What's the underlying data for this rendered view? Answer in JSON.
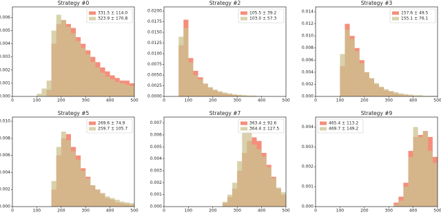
{
  "chart_data": [
    {
      "type": "histogram",
      "title": "Strategy #0",
      "legend": "upper right",
      "bins": [
        0,
        20,
        40,
        60,
        80,
        100,
        120,
        140,
        160,
        180,
        200,
        220,
        240,
        260,
        280,
        300,
        320,
        340,
        360,
        380,
        400,
        420,
        440,
        460,
        480,
        500
      ],
      "series": [
        {
          "name": "331.5 ± 114.0",
          "color": "#f0684f",
          "values": [
            0,
            0,
            0,
            0,
            0,
            0,
            0,
            0.0005,
            0.004,
            0.0055,
            0.0058,
            0.0055,
            0.0052,
            0.0045,
            0.004,
            0.0035,
            0.003,
            0.0026,
            0.0022,
            0.0019,
            0.0016,
            0.0014,
            0.0012,
            0.0012,
            0.001
          ]
        },
        {
          "name": "323.9 ± 170.8",
          "color": "#cbc28f",
          "values": [
            0,
            0,
            0,
            0,
            0,
            0.0002,
            0.0006,
            0.0012,
            0.005,
            0.0062,
            0.0058,
            0.0053,
            0.0048,
            0.0042,
            0.0037,
            0.0032,
            0.0026,
            0.0022,
            0.0018,
            0.0015,
            0.0013,
            0.0011,
            0.001,
            0.0009,
            0.0008
          ]
        }
      ],
      "xlim": [
        0,
        500
      ],
      "xticks": [
        0,
        100,
        200,
        300,
        400,
        500
      ],
      "ylim": [
        0,
        0.0068
      ],
      "yticks": [
        {
          "value": 0,
          "label": "0.000"
        },
        {
          "value": 0.001,
          "label": "0.001"
        },
        {
          "value": 0.002,
          "label": "0.002"
        },
        {
          "value": 0.003,
          "label": "0.003"
        },
        {
          "value": 0.004,
          "label": "0.004"
        },
        {
          "value": 0.005,
          "label": "0.005"
        },
        {
          "value": 0.006,
          "label": "0.006"
        }
      ]
    },
    {
      "type": "histogram",
      "title": "Strategy #2",
      "legend": "upper right",
      "bins": [
        0,
        20,
        40,
        60,
        80,
        100,
        120,
        140,
        160,
        180,
        200,
        220,
        240,
        260,
        280,
        300,
        320,
        340,
        360,
        380,
        400,
        420,
        440,
        460,
        480,
        500
      ],
      "series": [
        {
          "name": "105.5 ± 39.2",
          "color": "#f0684f",
          "values": [
            0,
            0,
            0,
            0.012,
            0.018,
            0.009,
            0.006,
            0.0045,
            0.003,
            0.002,
            0.0014,
            0.001,
            0.0007,
            0.0005,
            0.0003,
            0.0002,
            0.0001,
            0,
            0,
            0,
            0,
            0,
            0,
            0,
            0
          ]
        },
        {
          "name": "103.0 ± 57.3",
          "color": "#cbc28f",
          "values": [
            0,
            0,
            0,
            0.014,
            0.016,
            0.008,
            0.005,
            0.004,
            0.003,
            0.0022,
            0.0016,
            0.0012,
            0.0009,
            0.0007,
            0.0005,
            0.0004,
            0.0003,
            0.0002,
            0.0002,
            0.0001,
            0.0001,
            0,
            0,
            0,
            0
          ]
        }
      ],
      "xlim": [
        0,
        500
      ],
      "xticks": [
        0,
        100,
        200,
        300,
        400,
        500
      ],
      "ylim": [
        0,
        0.021
      ],
      "yticks": [
        {
          "value": 0,
          "label": "0.0000"
        },
        {
          "value": 0.0025,
          "label": "0.0025"
        },
        {
          "value": 0.005,
          "label": "0.0050"
        },
        {
          "value": 0.0075,
          "label": "0.0075"
        },
        {
          "value": 0.01,
          "label": "0.0100"
        },
        {
          "value": 0.0125,
          "label": "0.0125"
        },
        {
          "value": 0.015,
          "label": "0.0150"
        },
        {
          "value": 0.0175,
          "label": "0.0175"
        },
        {
          "value": 0.02,
          "label": "0.0200"
        }
      ]
    },
    {
      "type": "histogram",
      "title": "Strategy #3",
      "legend": "upper right",
      "bins": [
        0,
        20,
        40,
        60,
        80,
        100,
        120,
        140,
        160,
        180,
        200,
        220,
        240,
        260,
        280,
        300,
        320,
        340,
        360,
        380,
        400,
        420,
        440,
        460,
        480,
        500
      ],
      "series": [
        {
          "name": "157.6 ± 49.5",
          "color": "#f0684f",
          "values": [
            0,
            0,
            0,
            0,
            0,
            0.005,
            0.012,
            0.01,
            0.008,
            0.006,
            0.004,
            0.003,
            0.002,
            0.0015,
            0.001,
            0.0008,
            0.0005,
            0.0003,
            0.0002,
            0.0001,
            0,
            0,
            0,
            0,
            0
          ]
        },
        {
          "name": "155.1 ± 76.1",
          "color": "#cbc28f",
          "values": [
            0,
            0,
            0,
            0,
            0,
            0.007,
            0.011,
            0.0095,
            0.0075,
            0.0055,
            0.004,
            0.003,
            0.0022,
            0.0016,
            0.0012,
            0.0009,
            0.0007,
            0.0005,
            0.0004,
            0.0003,
            0.0002,
            0.0002,
            0.0001,
            0.0001,
            0.0001
          ]
        }
      ],
      "xlim": [
        0,
        500
      ],
      "xticks": [
        0,
        100,
        200,
        300,
        400,
        500
      ],
      "ylim": [
        0,
        0.0148
      ],
      "yticks": [
        {
          "value": 0,
          "label": "0.000"
        },
        {
          "value": 0.002,
          "label": "0.002"
        },
        {
          "value": 0.004,
          "label": "0.004"
        },
        {
          "value": 0.006,
          "label": "0.006"
        },
        {
          "value": 0.008,
          "label": "0.008"
        },
        {
          "value": 0.01,
          "label": "0.010"
        },
        {
          "value": 0.012,
          "label": "0.012"
        },
        {
          "value": 0.014,
          "label": "0.014"
        }
      ]
    },
    {
      "type": "histogram",
      "title": "Strategy #5",
      "legend": "upper right",
      "bins": [
        0,
        20,
        40,
        60,
        80,
        100,
        120,
        140,
        160,
        180,
        200,
        220,
        240,
        260,
        280,
        300,
        320,
        340,
        360,
        380,
        400,
        420,
        440,
        460,
        480,
        500
      ],
      "series": [
        {
          "name": "269.6 ± 74.9",
          "color": "#f0684f",
          "values": [
            0,
            0,
            0,
            0,
            0,
            0,
            0,
            0,
            0.002,
            0.006,
            0.008,
            0.0085,
            0.007,
            0.006,
            0.0045,
            0.0035,
            0.0025,
            0.002,
            0.0015,
            0.001,
            0.0008,
            0.0005,
            0.0004,
            0.0003,
            0.0002
          ]
        },
        {
          "name": "259.7 ± 105.7",
          "color": "#cbc28f",
          "values": [
            0,
            0,
            0,
            0,
            0,
            0,
            0,
            0,
            0.003,
            0.007,
            0.0088,
            0.0078,
            0.0065,
            0.0055,
            0.0042,
            0.0033,
            0.0025,
            0.002,
            0.0016,
            0.0012,
            0.001,
            0.0008,
            0.0006,
            0.0005,
            0.0004
          ]
        }
      ],
      "xlim": [
        0,
        500
      ],
      "xticks": [
        0,
        100,
        200,
        300,
        400,
        500
      ],
      "ylim": [
        0,
        0.0105
      ],
      "yticks": [
        {
          "value": 0,
          "label": "0.000"
        },
        {
          "value": 0.002,
          "label": "0.002"
        },
        {
          "value": 0.004,
          "label": "0.004"
        },
        {
          "value": 0.006,
          "label": "0.006"
        },
        {
          "value": 0.008,
          "label": "0.008"
        },
        {
          "value": 0.01,
          "label": "0.010"
        }
      ]
    },
    {
      "type": "histogram",
      "title": "Strategy #7",
      "legend": "upper right",
      "bins": [
        0,
        20,
        40,
        60,
        80,
        100,
        120,
        140,
        160,
        180,
        200,
        220,
        240,
        260,
        280,
        300,
        320,
        340,
        360,
        380,
        400,
        420,
        440,
        460,
        480,
        500
      ],
      "series": [
        {
          "name": "363.4 ± 92.6",
          "color": "#f0684f",
          "values": [
            0,
            0,
            0,
            0,
            0,
            0,
            0,
            0,
            0,
            0,
            0,
            0,
            0.0003,
            0.0008,
            0.0015,
            0.003,
            0.0045,
            0.0055,
            0.0058,
            0.0055,
            0.0045,
            0.0035,
            0.0025,
            0.0015,
            0.001
          ]
        },
        {
          "name": "364.4 ± 127.5",
          "color": "#cbc28f",
          "values": [
            0,
            0,
            0,
            0,
            0,
            0,
            0,
            0,
            0,
            0,
            0,
            0,
            0.0004,
            0.001,
            0.002,
            0.0038,
            0.0062,
            0.007,
            0.0052,
            0.0048,
            0.0042,
            0.0033,
            0.0024,
            0.0016,
            0.0012
          ]
        }
      ],
      "xlim": [
        0,
        500
      ],
      "xticks": [
        0,
        100,
        200,
        300,
        400,
        500
      ],
      "ylim": [
        0,
        0.0075
      ],
      "yticks": [
        {
          "value": 0,
          "label": "0.000"
        },
        {
          "value": 0.001,
          "label": "0.001"
        },
        {
          "value": 0.002,
          "label": "0.002"
        },
        {
          "value": 0.003,
          "label": "0.003"
        },
        {
          "value": 0.004,
          "label": "0.004"
        },
        {
          "value": 0.005,
          "label": "0.005"
        },
        {
          "value": 0.006,
          "label": "0.006"
        },
        {
          "value": 0.007,
          "label": "0.007"
        }
      ]
    },
    {
      "type": "histogram",
      "title": "Strategy #9",
      "legend": "upper left",
      "bins": [
        0,
        20,
        40,
        60,
        80,
        100,
        120,
        140,
        160,
        180,
        200,
        220,
        240,
        260,
        280,
        300,
        320,
        340,
        360,
        380,
        400,
        420,
        440,
        460,
        480,
        500
      ],
      "series": [
        {
          "name": "465.4 ± 113.2",
          "color": "#f0684f",
          "values": [
            0,
            0,
            0,
            0,
            0,
            0,
            0,
            0,
            0,
            0,
            0,
            0,
            0,
            0,
            0,
            0,
            0.0002,
            0.0005,
            0.0012,
            0.0028,
            0.0035,
            0.0036,
            0.0038,
            0.0035,
            0.0025
          ]
        },
        {
          "name": "469.7 ± 149.2",
          "color": "#cbc28f",
          "values": [
            0,
            0,
            0,
            0,
            0,
            0,
            0,
            0,
            0,
            0,
            0,
            0,
            0,
            0,
            0,
            0,
            0.0001,
            0.0003,
            0.001,
            0.0025,
            0.004,
            0.0035,
            0.0038,
            0.0028,
            0.0022
          ]
        }
      ],
      "xlim": [
        0,
        500
      ],
      "xticks": [
        0,
        100,
        200,
        300,
        400,
        500
      ],
      "ylim": [
        0,
        0.0045
      ],
      "yticks": [
        {
          "value": 0,
          "label": "0.000"
        },
        {
          "value": 0.001,
          "label": "0.001"
        },
        {
          "value": 0.002,
          "label": "0.002"
        },
        {
          "value": 0.003,
          "label": "0.003"
        },
        {
          "value": 0.004,
          "label": "0.004"
        }
      ]
    }
  ]
}
